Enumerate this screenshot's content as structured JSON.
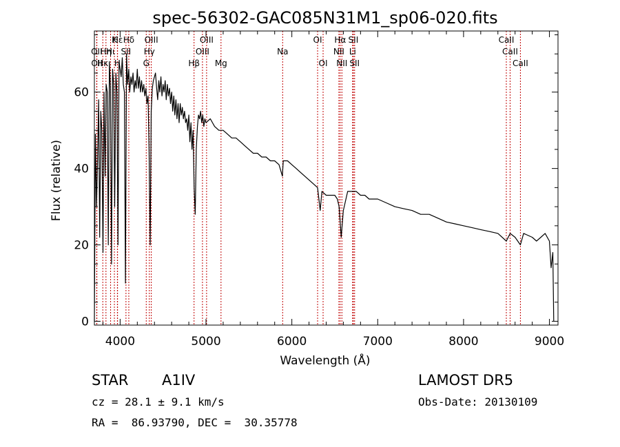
{
  "chart_data": {
    "type": "line",
    "title": "spec-56302-GAC085N31M1_sp06-020.fits",
    "xlabel": "Wavelength (Å)",
    "ylabel": "Flux (relative)",
    "xlim": [
      3700,
      9100
    ],
    "ylim": [
      -1,
      76
    ],
    "xticks": [
      4000,
      5000,
      6000,
      7000,
      8000,
      9000
    ],
    "yticks": [
      0,
      20,
      40,
      60
    ],
    "grid": false,
    "series": [
      {
        "color": "#000000",
        "x": [
          3700,
          3712,
          3725,
          3737,
          3750,
          3762,
          3775,
          3787,
          3800,
          3812,
          3825,
          3837,
          3850,
          3862,
          3875,
          3887,
          3900,
          3912,
          3925,
          3937,
          3950,
          3962,
          3975,
          3987,
          4000,
          4012,
          4025,
          4037,
          4050,
          4062,
          4075,
          4087,
          4100,
          4112,
          4125,
          4137,
          4150,
          4162,
          4175,
          4187,
          4200,
          4212,
          4225,
          4237,
          4250,
          4262,
          4275,
          4287,
          4300,
          4312,
          4325,
          4337,
          4350,
          4362,
          4375,
          4387,
          4400,
          4412,
          4425,
          4437,
          4450,
          4462,
          4475,
          4487,
          4500,
          4512,
          4525,
          4537,
          4550,
          4562,
          4575,
          4587,
          4600,
          4612,
          4625,
          4637,
          4650,
          4662,
          4675,
          4687,
          4700,
          4712,
          4725,
          4737,
          4750,
          4762,
          4775,
          4787,
          4800,
          4812,
          4825,
          4837,
          4850,
          4862,
          4875,
          4887,
          4900,
          4912,
          4925,
          4937,
          4950,
          4962,
          4975,
          4987,
          5000,
          5050,
          5100,
          5150,
          5200,
          5250,
          5300,
          5350,
          5400,
          5450,
          5500,
          5550,
          5600,
          5650,
          5700,
          5750,
          5800,
          5850,
          5890,
          5900,
          5950,
          6000,
          6050,
          6100,
          6150,
          6200,
          6250,
          6300,
          6330,
          6350,
          6400,
          6450,
          6500,
          6530,
          6550,
          6563,
          6575,
          6600,
          6650,
          6700,
          6750,
          6800,
          6850,
          6900,
          6950,
          7000,
          7100,
          7200,
          7300,
          7400,
          7500,
          7600,
          7700,
          7800,
          7900,
          8000,
          8100,
          8200,
          8300,
          8400,
          8498,
          8542,
          8600,
          8662,
          8700,
          8800,
          8850,
          8900,
          8950,
          9000,
          9020,
          9040,
          9050
        ],
        "y": [
          0,
          49,
          30,
          42,
          58,
          22,
          55,
          50,
          18,
          60,
          38,
          62,
          60,
          20,
          68,
          61,
          15,
          66,
          62,
          30,
          65,
          60,
          20,
          68,
          66,
          64,
          69,
          62,
          60,
          10,
          70,
          62,
          66,
          60,
          64,
          62,
          65,
          60,
          63,
          61,
          66,
          61,
          64,
          60,
          63,
          60,
          62,
          59,
          61,
          57,
          59,
          45,
          20,
          55,
          61,
          63,
          64,
          65,
          61,
          58,
          63,
          60,
          64,
          59,
          62,
          60,
          63,
          58,
          62,
          59,
          61,
          57,
          60,
          55,
          59,
          54,
          58,
          53,
          57,
          52,
          57,
          54,
          56,
          53,
          55,
          52,
          53,
          50,
          54,
          47,
          52,
          45,
          50,
          35,
          28,
          45,
          51,
          54,
          53,
          55,
          52,
          54,
          51,
          53,
          52,
          53,
          51,
          50,
          50,
          49,
          48,
          48,
          47,
          46,
          45,
          44,
          44,
          43,
          43,
          42,
          42,
          41,
          38,
          42,
          42,
          41,
          40,
          39,
          38,
          37,
          36,
          35,
          29,
          34,
          33,
          33,
          33,
          32,
          30,
          26,
          22,
          29,
          34,
          34,
          34,
          33,
          33,
          32,
          32,
          32,
          31,
          30,
          29.5,
          29,
          28,
          28,
          27,
          26,
          25.5,
          25,
          24.5,
          24,
          23.5,
          23,
          21,
          23,
          22,
          20,
          23,
          22,
          21,
          22,
          23,
          21,
          14,
          18,
          0
        ]
      }
    ],
    "line_markers": [
      {
        "label": "Hε",
        "wl": 3970,
        "row": 1
      },
      {
        "label": "K",
        "wl": 3933,
        "row": 1
      },
      {
        "label": "Hδ",
        "wl": 4101,
        "row": 1
      },
      {
        "label": "OII",
        "wl": 3727,
        "row": 2
      },
      {
        "label": "Hη",
        "wl": 3835,
        "row": 2
      },
      {
        "label": "Hι",
        "wl": 3889,
        "row": 2
      },
      {
        "label": "SII",
        "wl": 4068,
        "row": 2
      },
      {
        "label": "OII",
        "wl": 3729,
        "row": 3
      },
      {
        "label": "Hκ",
        "wl": 3798,
        "row": 3
      },
      {
        "label": "H",
        "wl": 3968,
        "row": 3
      },
      {
        "label": "OIII",
        "wl": 4363,
        "row": 1
      },
      {
        "label": "Hγ",
        "wl": 4340,
        "row": 2
      },
      {
        "label": "G",
        "wl": 4304,
        "row": 3
      },
      {
        "label": "OIII",
        "wl": 5007,
        "row": 1
      },
      {
        "label": "OIII",
        "wl": 4959,
        "row": 2
      },
      {
        "label": "Hβ",
        "wl": 4861,
        "row": 3
      },
      {
        "label": "Mg",
        "wl": 5175,
        "row": 3
      },
      {
        "label": "Na",
        "wl": 5893,
        "row": 2
      },
      {
        "label": "OI",
        "wl": 6300,
        "row": 1
      },
      {
        "label": "OI",
        "wl": 6364,
        "row": 3
      },
      {
        "label": "Hα",
        "wl": 6563,
        "row": 1
      },
      {
        "label": "SII",
        "wl": 6716,
        "row": 1
      },
      {
        "label": "NII",
        "wl": 6548,
        "row": 2
      },
      {
        "label": "Li",
        "wl": 6708,
        "row": 2
      },
      {
        "label": "NII",
        "wl": 6583,
        "row": 3
      },
      {
        "label": "SII",
        "wl": 6731,
        "row": 3
      },
      {
        "label": "CaII",
        "wl": 8498,
        "row": 1
      },
      {
        "label": "CaII",
        "wl": 8542,
        "row": 2
      },
      {
        "label": "CaII",
        "wl": 8662,
        "row": 3
      }
    ]
  },
  "info": {
    "object_class": "STAR",
    "subclass": "A1IV",
    "cz": "cz = 28.1 ± 9.1 km/s",
    "radec": "RA =  86.93790, DEC =  30.35778",
    "survey": "LAMOST DR5",
    "obs_date": "Obs-Date: 20130109"
  }
}
